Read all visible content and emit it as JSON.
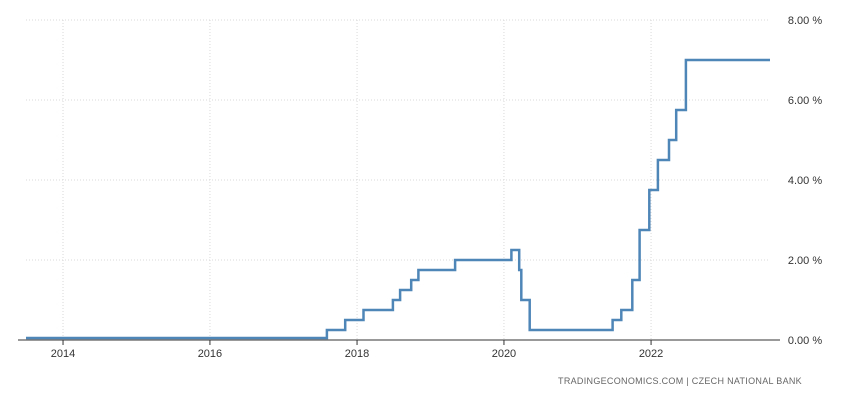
{
  "source_text": "TRADINGECONOMICS.COM  |  CZECH NATIONAL BANK",
  "colors": {
    "line": "#4f86b8",
    "grid": "#d9d9d9",
    "axis": "#333333",
    "text": "#333333"
  },
  "chart_data": {
    "type": "line",
    "title": "",
    "xlabel": "",
    "ylabel": "",
    "x_tick_labels": [
      "2014",
      "2016",
      "2018",
      "2020",
      "2022"
    ],
    "y_tick_labels": [
      "0.00 %",
      "2.00 %",
      "4.00 %",
      "6.00 %",
      "8.00 %"
    ],
    "xlim": [
      "2013-07-01",
      "2023-08-15"
    ],
    "ylim": [
      0,
      8
    ],
    "grid": true,
    "step": true,
    "series": [
      {
        "values": [
          {
            "x": "2013-07-01",
            "y": 0.05
          },
          {
            "x": "2017-08-04",
            "y": 0.25
          },
          {
            "x": "2017-11-03",
            "y": 0.5
          },
          {
            "x": "2018-02-02",
            "y": 0.75
          },
          {
            "x": "2018-06-28",
            "y": 1.0
          },
          {
            "x": "2018-08-03",
            "y": 1.25
          },
          {
            "x": "2018-09-27",
            "y": 1.5
          },
          {
            "x": "2018-11-02",
            "y": 1.75
          },
          {
            "x": "2019-05-03",
            "y": 2.0
          },
          {
            "x": "2020-02-07",
            "y": 2.25
          },
          {
            "x": "2020-03-17",
            "y": 1.75
          },
          {
            "x": "2020-03-27",
            "y": 1.0
          },
          {
            "x": "2020-05-08",
            "y": 0.25
          },
          {
            "x": "2021-06-24",
            "y": 0.5
          },
          {
            "x": "2021-08-06",
            "y": 0.75
          },
          {
            "x": "2021-09-30",
            "y": 1.5
          },
          {
            "x": "2021-11-05",
            "y": 2.75
          },
          {
            "x": "2021-12-23",
            "y": 3.75
          },
          {
            "x": "2022-02-04",
            "y": 4.5
          },
          {
            "x": "2022-03-31",
            "y": 5.0
          },
          {
            "x": "2022-05-06",
            "y": 5.75
          },
          {
            "x": "2022-06-23",
            "y": 7.0
          },
          {
            "x": "2023-08-15",
            "y": 7.0
          }
        ]
      }
    ]
  }
}
